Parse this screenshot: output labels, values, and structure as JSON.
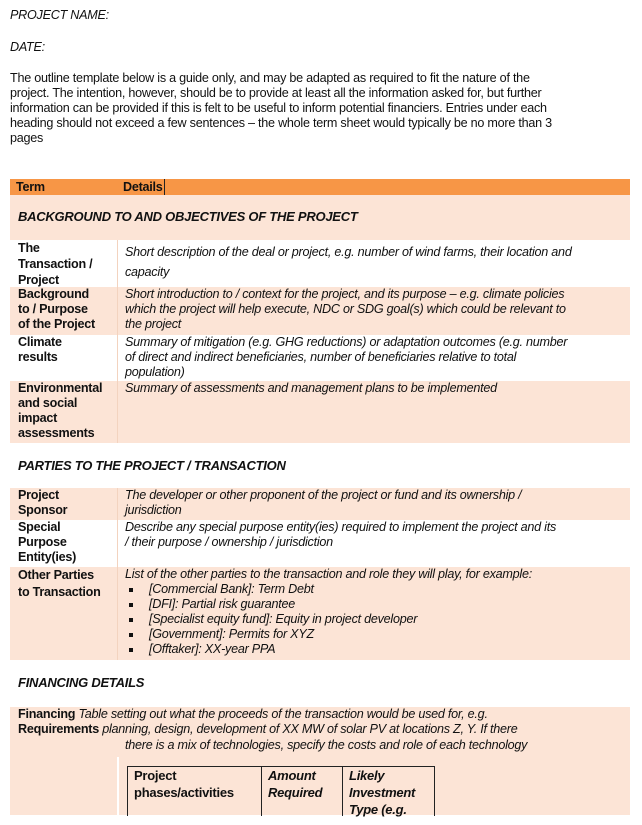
{
  "header": {
    "project_name_label": "PROJECT NAME:",
    "date_label": "DATE:",
    "intro_lines": [
      "The outline template below is a guide only, and may be adapted as required to fit the nature of the",
      "project. The intention, however, should be to provide at least all the information asked for, but further",
      "information can be provided if this is felt to be useful to inform potential financiers. Entries under each",
      "heading should not exceed a few sentences – the whole term sheet would typically be no more than 3",
      "pages"
    ]
  },
  "table": {
    "col_term": "Term",
    "col_details": "Details",
    "section_background": "BACKGROUND TO AND OBJECTIVES OF THE PROJECT",
    "section_parties": "PARTIES TO THE PROJECT / TRANSACTION",
    "section_financing": "FINANCING DETAILS",
    "rows": [
      {
        "term": [
          "The",
          "Transaction /",
          "Project"
        ],
        "details": [
          "Short description of the deal or project, e.g. number of wind farms, their location and",
          "capacity"
        ]
      },
      {
        "term": [
          "Background",
          "to / Purpose",
          "of the Project"
        ],
        "details": [
          "Short introduction to / context for the project, and its purpose – e.g. climate policies",
          "which the project will help execute, NDC or SDG goal(s) which could be relevant to",
          "the project"
        ]
      },
      {
        "term": [
          "Climate",
          "results"
        ],
        "details": [
          "Summary of mitigation (e.g. GHG reductions) or adaptation outcomes (e.g. number",
          "of direct and indirect beneficiaries, number of beneficiaries relative to total",
          "population)"
        ]
      },
      {
        "term": [
          "Environmental",
          "and social",
          "impact",
          "assessments"
        ],
        "details": [
          "Summary of assessments and management plans to be implemented"
        ]
      },
      {
        "term": [
          "Project",
          "Sponsor"
        ],
        "details": [
          "The developer or other proponent of the project or fund and its ownership /",
          "jurisdiction"
        ]
      },
      {
        "term": [
          "Special",
          "Purpose",
          "Entity(ies)"
        ],
        "details": [
          "Describe any special purpose entity(ies) required to implement the project and its",
          "/ their purpose / ownership / jurisdiction"
        ]
      },
      {
        "term": [
          "Other Parties",
          "to Transaction"
        ],
        "details": [
          "List of the other parties to the transaction and role they will play, for example:"
        ],
        "bullets": [
          "[Commercial Bank]: Term Debt",
          "[DFI]: Partial risk guarantee",
          "[Specialist equity fund]: Equity in project developer",
          "[Government]: Permits for XYZ",
          "[Offtaker]: XX-year PPA"
        ]
      }
    ],
    "financing": {
      "term_line1": "Financing",
      "term_line2": "Requirements",
      "details_line1": "Table setting out what the proceeds of the transaction would be used for, e.g.",
      "details_line2": "planning, design, development of XX MW of solar PV at locations Z, Y. If there",
      "details_line3": "there is a mix of technologies, specify the costs and role of each technology",
      "inner_headers": [
        "Project phases/activities",
        "Amount Required",
        "Likely Investment Type (e.g."
      ]
    }
  },
  "colors": {
    "header_orange": "#f79646",
    "peach": "#fce4d6"
  }
}
